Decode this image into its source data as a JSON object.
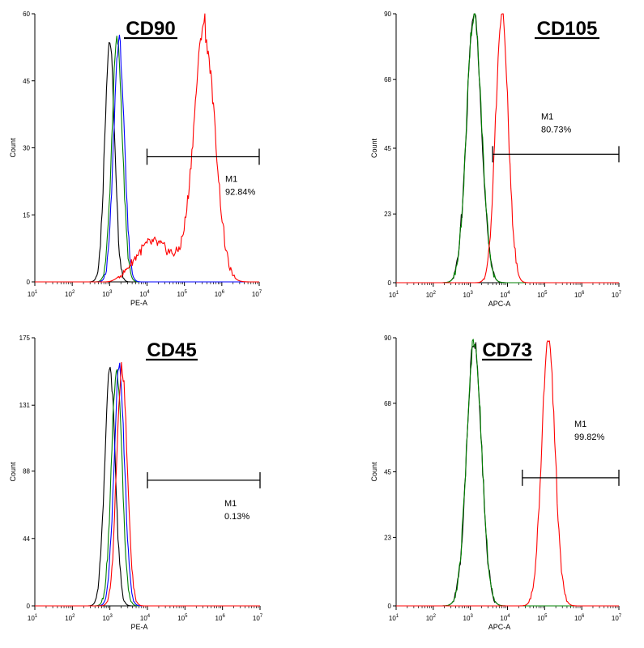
{
  "chart_data": [
    {
      "type": "line",
      "panel": "top-left",
      "title": "CD90",
      "xlabel": "PE-A",
      "ylabel": "Count",
      "xscale": "log",
      "xlim": [
        1,
        7
      ],
      "ylim": [
        0,
        60
      ],
      "x_ticks": [
        1,
        2,
        3,
        4,
        5,
        6,
        7
      ],
      "y_ticks": [
        0,
        15,
        30,
        45,
        60
      ],
      "marker": {
        "name": "M1",
        "percent": "92.84%",
        "x_range": [
          4.0,
          7.0
        ],
        "y": 28
      },
      "series": [
        {
          "name": "black",
          "color": "#000000",
          "center": 3.0,
          "width": 0.13,
          "peak": 54,
          "skew": 0
        },
        {
          "name": "green",
          "color": "#008000",
          "center": 3.2,
          "width": 0.14,
          "peak": 54,
          "skew": 0
        },
        {
          "name": "blue",
          "color": "#0000ff",
          "center": 3.25,
          "width": 0.14,
          "peak": 54,
          "skew": 0
        },
        {
          "name": "red",
          "color": "#ff0000",
          "center": 5.55,
          "width": 0.28,
          "peak": 54,
          "skew": 1
        }
      ]
    },
    {
      "type": "line",
      "panel": "top-right",
      "title": "CD105",
      "xlabel": "APC-A",
      "ylabel": "Count",
      "xscale": "log",
      "xlim": [
        1,
        7
      ],
      "ylim": [
        0,
        90
      ],
      "x_ticks": [
        1,
        2,
        3,
        4,
        5,
        6,
        7
      ],
      "y_ticks": [
        0,
        23,
        45,
        68,
        90
      ],
      "marker": {
        "name": "M1",
        "percent": "80.73%",
        "x_range": [
          3.6,
          7.0
        ],
        "y": 43
      },
      "series": [
        {
          "name": "black",
          "color": "#000000",
          "center": 3.1,
          "width": 0.2,
          "peak": 90,
          "skew": 0
        },
        {
          "name": "green",
          "color": "#008000",
          "center": 3.1,
          "width": 0.2,
          "peak": 90,
          "skew": 0
        },
        {
          "name": "red",
          "color": "#ff0000",
          "center": 3.85,
          "width": 0.17,
          "peak": 90,
          "skew": 0
        }
      ]
    },
    {
      "type": "line",
      "panel": "bottom-left",
      "title": "CD45",
      "xlabel": "PE-A",
      "ylabel": "Count",
      "xscale": "log",
      "xlim": [
        1,
        7
      ],
      "ylim": [
        0,
        175
      ],
      "x_ticks": [
        1,
        2,
        3,
        4,
        5,
        6,
        7
      ],
      "y_ticks": [
        0,
        44,
        88,
        131,
        175
      ],
      "marker": {
        "name": "M1",
        "percent": "0.13%",
        "x_range": [
          4.0,
          7.0
        ],
        "y": 82
      },
      "series": [
        {
          "name": "black",
          "color": "#000000",
          "center": 3.0,
          "width": 0.14,
          "peak": 155,
          "skew": 0
        },
        {
          "name": "green",
          "color": "#008000",
          "center": 3.18,
          "width": 0.14,
          "peak": 155,
          "skew": 0
        },
        {
          "name": "blue",
          "color": "#0000ff",
          "center": 3.25,
          "width": 0.14,
          "peak": 155,
          "skew": 0
        },
        {
          "name": "red",
          "color": "#ff0000",
          "center": 3.32,
          "width": 0.14,
          "peak": 155,
          "skew": 0
        }
      ]
    },
    {
      "type": "line",
      "panel": "bottom-right",
      "title": "CD73",
      "xlabel": "APC-A",
      "ylabel": "Count",
      "xscale": "log",
      "xlim": [
        1,
        7
      ],
      "ylim": [
        0,
        90
      ],
      "x_ticks": [
        1,
        2,
        3,
        4,
        5,
        6,
        7
      ],
      "y_ticks": [
        0,
        23,
        45,
        68,
        90
      ],
      "marker": {
        "name": "M1",
        "percent": "99.82%",
        "x_range": [
          4.4,
          7.0
        ],
        "y": 43
      },
      "series": [
        {
          "name": "black",
          "color": "#000000",
          "center": 3.1,
          "width": 0.2,
          "peak": 89,
          "skew": 0
        },
        {
          "name": "green",
          "color": "#008000",
          "center": 3.1,
          "width": 0.2,
          "peak": 89,
          "skew": 0
        },
        {
          "name": "red",
          "color": "#ff0000",
          "center": 5.1,
          "width": 0.18,
          "peak": 89,
          "skew": 0
        }
      ]
    }
  ]
}
